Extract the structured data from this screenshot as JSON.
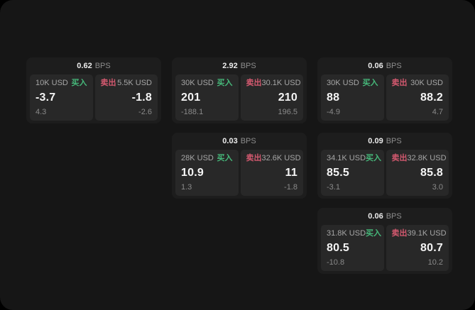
{
  "labels": {
    "unit": "BPS",
    "buy": "买入",
    "sell": "卖出"
  },
  "colors": {
    "buy-green": "#46b87a",
    "sell-red": "#d4596f",
    "page-bg": "#161616",
    "card-bg": "#1d1d1d",
    "panel-bg": "#282828"
  },
  "columns": [
    {
      "cards": [
        {
          "bps": "0.62",
          "buy": {
            "amount": "10K USD",
            "price": "-3.7",
            "delta": "4.3"
          },
          "sell": {
            "amount": "5.5K USD",
            "price": "-1.8",
            "delta": "-2.6"
          }
        }
      ]
    },
    {
      "cards": [
        {
          "bps": "2.92",
          "buy": {
            "amount": "30K USD",
            "price": "201",
            "delta": "-188.1"
          },
          "sell": {
            "amount": "30.1K USD",
            "price": "210",
            "delta": "196.5"
          }
        },
        {
          "bps": "0.03",
          "buy": {
            "amount": "28K USD",
            "price": "10.9",
            "delta": "1.3"
          },
          "sell": {
            "amount": "32.6K USD",
            "price": "11",
            "delta": "-1.8"
          }
        }
      ]
    },
    {
      "cards": [
        {
          "bps": "0.06",
          "buy": {
            "amount": "30K USD",
            "price": "88",
            "delta": "-4.9"
          },
          "sell": {
            "amount": "30K USD",
            "price": "88.2",
            "delta": "4.7"
          }
        },
        {
          "bps": "0.09",
          "buy": {
            "amount": "34.1K USD",
            "price": "85.5",
            "delta": "-3.1"
          },
          "sell": {
            "amount": "32.8K USD",
            "price": "85.8",
            "delta": "3.0"
          }
        },
        {
          "bps": "0.06",
          "buy": {
            "amount": "31.8K USD",
            "price": "80.5",
            "delta": "-10.8"
          },
          "sell": {
            "amount": "39.1K USD",
            "price": "80.7",
            "delta": "10.2"
          }
        }
      ]
    }
  ]
}
